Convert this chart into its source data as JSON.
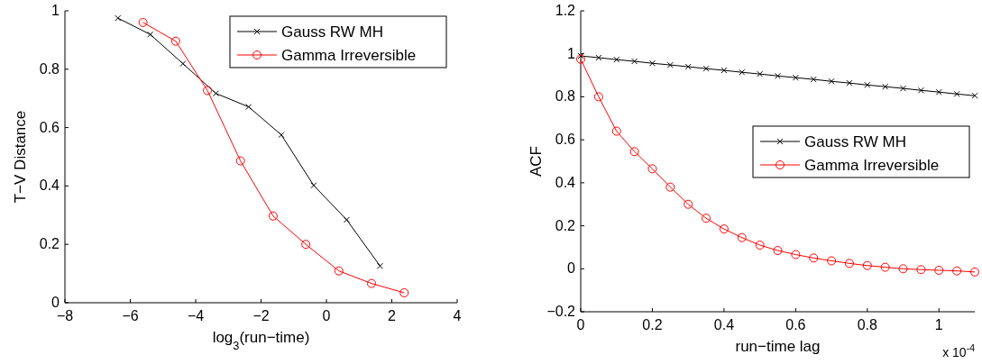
{
  "chart_data": [
    {
      "type": "line",
      "xlabel": "log$_{3}$(run−time)",
      "ylabel": "T−V Distance",
      "xlim": [
        -8,
        4
      ],
      "xticks": [
        -8,
        -6,
        -4,
        -2,
        0,
        2,
        4
      ],
      "ylim": [
        0,
        1
      ],
      "yticks": [
        0,
        0.2,
        0.4,
        0.6,
        0.8,
        1
      ],
      "legend": "top right",
      "grid": false,
      "series": [
        {
          "name": "Gauss RW MH",
          "color": "#000000",
          "marker": "cross",
          "x": [
            -6.38,
            -5.39,
            -4.39,
            -3.38,
            -2.38,
            -1.38,
            -0.39,
            0.62,
            1.64
          ],
          "values": [
            0.975,
            0.919,
            0.819,
            0.717,
            0.671,
            0.575,
            0.402,
            0.284,
            0.126
          ]
        },
        {
          "name": "Gamma Irreversible",
          "color": "#ff0000",
          "marker": "circle",
          "x": [
            -5.61,
            -4.61,
            -3.64,
            -2.63,
            -1.63,
            -0.63,
            0.38,
            1.38,
            2.38
          ],
          "values": [
            0.96,
            0.896,
            0.727,
            0.486,
            0.297,
            0.2,
            0.109,
            0.066,
            0.034
          ]
        }
      ]
    },
    {
      "type": "line",
      "xlabel": "run−time lag",
      "ylabel": "ACF",
      "xlim": [
        0,
        1.1
      ],
      "xticks": [
        0,
        0.2,
        0.4,
        0.6,
        0.8,
        1
      ],
      "ylim": [
        -0.2,
        1.2
      ],
      "yticks": [
        -0.2,
        0,
        0.2,
        0.4,
        0.6,
        0.8,
        1,
        1.2
      ],
      "legend": "right",
      "grid": false,
      "annotations": [
        "x 10$^{-4}$"
      ],
      "series": [
        {
          "name": "Gauss RW MH",
          "color": "#000000",
          "marker": "cross",
          "x": [
            0,
            0.05,
            0.1,
            0.15,
            0.2,
            0.25,
            0.3,
            0.35,
            0.4,
            0.45,
            0.5,
            0.55,
            0.6,
            0.65,
            0.7,
            0.75,
            0.8,
            0.85,
            0.9,
            0.95,
            1,
            1.05,
            1.1
          ],
          "values": [
            0.99,
            0.982,
            0.973,
            0.965,
            0.956,
            0.948,
            0.94,
            0.931,
            0.923,
            0.914,
            0.906,
            0.897,
            0.889,
            0.881,
            0.872,
            0.864,
            0.855,
            0.847,
            0.839,
            0.83,
            0.822,
            0.813,
            0.805
          ]
        },
        {
          "name": "Gamma Irreversible",
          "color": "#ff0000",
          "marker": "circle",
          "x": [
            0,
            0.05,
            0.1,
            0.15,
            0.2,
            0.25,
            0.3,
            0.35,
            0.4,
            0.45,
            0.5,
            0.55,
            0.6,
            0.65,
            0.7,
            0.75,
            0.8,
            0.85,
            0.9,
            0.95,
            1,
            1.05,
            1.1
          ],
          "values": [
            0.975,
            0.8,
            0.64,
            0.545,
            0.465,
            0.38,
            0.3,
            0.235,
            0.185,
            0.145,
            0.11,
            0.085,
            0.066,
            0.05,
            0.037,
            0.025,
            0.015,
            0.007,
            0,
            -0.004,
            -0.007,
            -0.01,
            -0.015
          ]
        }
      ]
    }
  ]
}
